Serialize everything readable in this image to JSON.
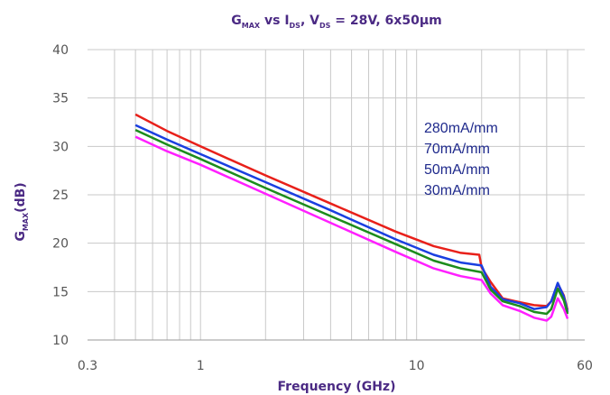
{
  "chart_data": {
    "type": "line",
    "title": {
      "parts": [
        {
          "text": "G",
          "sub": false
        },
        {
          "text": "MAX",
          "sub": true
        },
        {
          "text": " vs I",
          "sub": false
        },
        {
          "text": "DS",
          "sub": true
        },
        {
          "text": ", V",
          "sub": false
        },
        {
          "text": "DS",
          "sub": true
        },
        {
          "text": " = 28V, 6x50µm",
          "sub": false
        }
      ]
    },
    "xlabel": "Frequency (GHz)",
    "ylabel": {
      "parts": [
        {
          "text": "G",
          "sub": false
        },
        {
          "text": "MAX",
          "sub": true
        },
        {
          "text": "(dB)",
          "sub": false
        }
      ]
    },
    "x_scale": "log",
    "xlim": [
      0.3,
      60
    ],
    "ylim": [
      10,
      40
    ],
    "xticks": [
      0.3,
      1,
      10,
      60
    ],
    "xtick_labels": [
      "0.3",
      "1",
      "10",
      "60"
    ],
    "yticks": [
      10,
      15,
      20,
      25,
      30,
      35,
      40
    ],
    "ytick_labels": [
      "10",
      "15",
      "20",
      "25",
      "30",
      "35",
      "40"
    ],
    "grid": true,
    "legend": {
      "placement": "upper-right (inside plot)",
      "entries": [
        "280mA/mm",
        "70mA/mm",
        "50mA/mm",
        "30mA/mm"
      ]
    },
    "series": [
      {
        "name": "280mA/mm",
        "color": "#e8201a",
        "x": [
          0.5,
          0.7,
          1,
          2,
          4,
          8,
          12,
          16,
          19.5,
          20,
          22,
          25,
          30,
          35,
          40,
          42,
          45,
          48,
          50
        ],
        "y": [
          33.3,
          31.6,
          30.0,
          27.0,
          24.1,
          21.2,
          19.7,
          19.0,
          18.8,
          17.5,
          16.0,
          14.3,
          13.9,
          13.6,
          13.5,
          14.0,
          15.8,
          14.6,
          13.1
        ]
      },
      {
        "name": "70mA/mm",
        "color": "#1a3fe0",
        "x": [
          0.5,
          0.7,
          1,
          2,
          4,
          8,
          12,
          16,
          20,
          22,
          25,
          30,
          35,
          40,
          42,
          45,
          48,
          50
        ],
        "y": [
          32.2,
          30.7,
          29.2,
          26.3,
          23.4,
          20.4,
          18.8,
          18.0,
          17.7,
          15.5,
          14.2,
          13.8,
          13.2,
          13.4,
          14.0,
          15.9,
          14.5,
          12.9
        ]
      },
      {
        "name": "50mA/mm",
        "color": "#1c8c1c",
        "x": [
          0.5,
          0.7,
          1,
          2,
          4,
          8,
          12,
          16,
          20,
          22,
          25,
          30,
          35,
          40,
          42,
          45,
          48,
          50
        ],
        "y": [
          31.7,
          30.2,
          28.7,
          25.7,
          22.8,
          19.9,
          18.2,
          17.4,
          17.0,
          15.2,
          14.0,
          13.5,
          12.9,
          12.7,
          13.2,
          15.3,
          14.1,
          12.7
        ]
      },
      {
        "name": "30mA/mm",
        "color": "#ff20ff",
        "x": [
          0.5,
          0.7,
          1,
          2,
          4,
          8,
          12,
          16,
          20,
          22,
          25,
          30,
          35,
          40,
          42,
          45,
          48,
          50
        ],
        "y": [
          31.0,
          29.5,
          28.1,
          25.1,
          22.1,
          19.1,
          17.4,
          16.6,
          16.2,
          14.8,
          13.6,
          13.0,
          12.3,
          12.0,
          12.4,
          14.3,
          13.2,
          12.2
        ]
      }
    ]
  }
}
